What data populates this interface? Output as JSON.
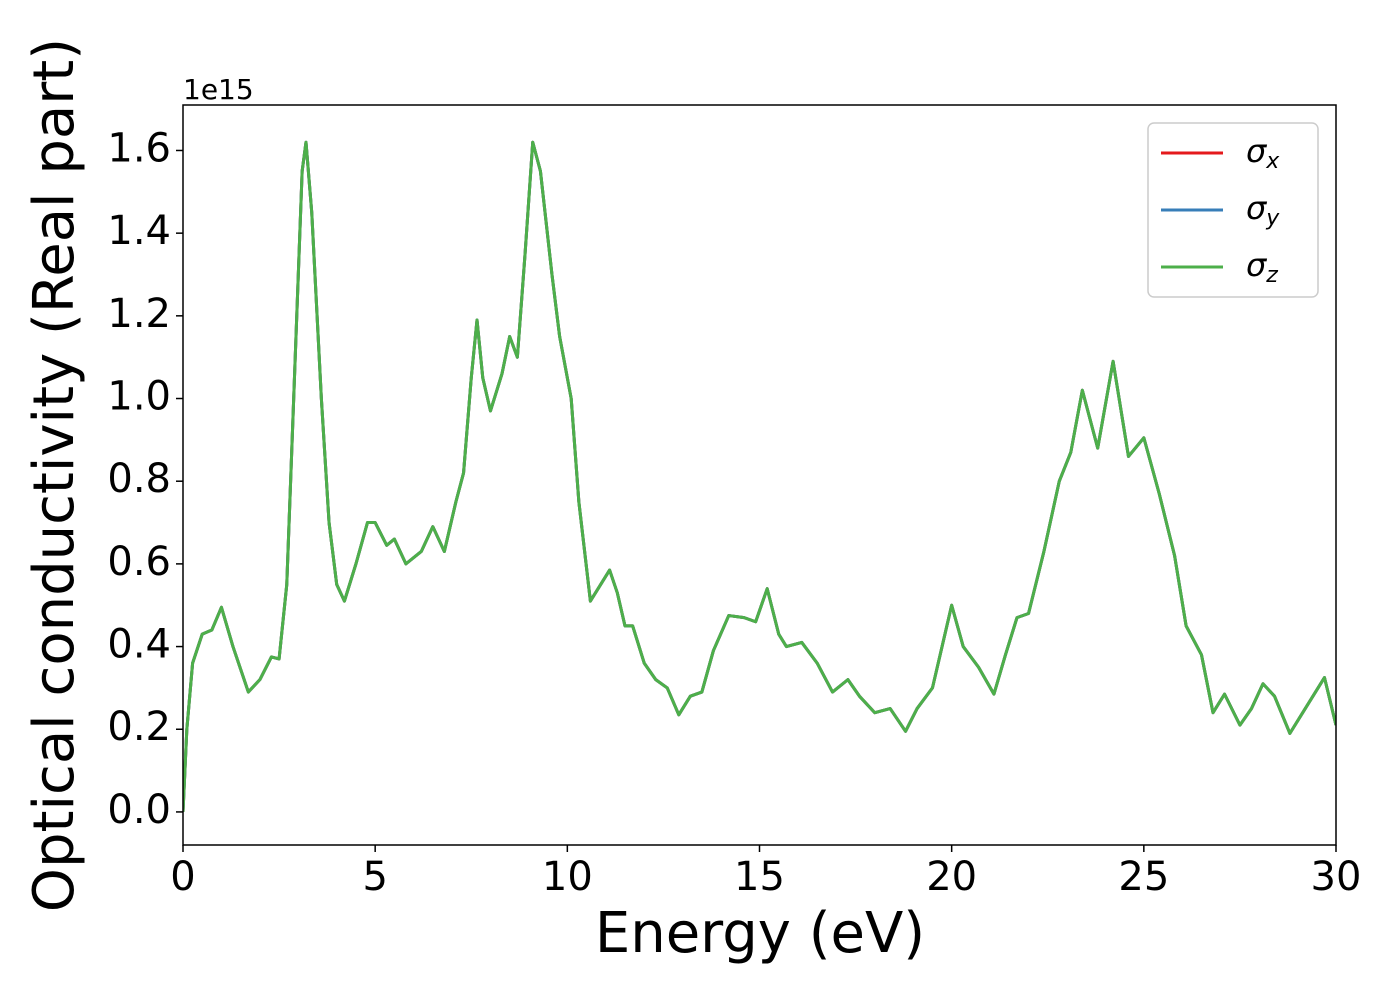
{
  "chart_data": {
    "type": "line",
    "xlabel": "Energy (eV)",
    "ylabel": "Optical conductivity (Real part)",
    "offset_label": "1e15",
    "x": [
      0,
      0.1,
      0.25,
      0.5,
      0.75,
      1.0,
      1.3,
      1.7,
      2.0,
      2.3,
      2.5,
      2.7,
      2.9,
      3.1,
      3.2,
      3.35,
      3.6,
      3.8,
      4.0,
      4.2,
      4.5,
      4.8,
      5.0,
      5.3,
      5.5,
      5.8,
      6.2,
      6.5,
      6.8,
      7.1,
      7.3,
      7.5,
      7.65,
      7.8,
      8.0,
      8.3,
      8.5,
      8.7,
      8.9,
      9.1,
      9.3,
      9.6,
      9.8,
      10.1,
      10.3,
      10.6,
      10.8,
      11.1,
      11.3,
      11.5,
      11.7,
      12.0,
      12.3,
      12.6,
      12.9,
      13.2,
      13.5,
      13.8,
      14.2,
      14.6,
      14.9,
      15.2,
      15.5,
      15.7,
      16.1,
      16.5,
      16.9,
      17.3,
      17.6,
      18.0,
      18.4,
      18.8,
      19.1,
      19.5,
      19.8,
      20.0,
      20.3,
      20.7,
      21.1,
      21.4,
      21.7,
      22.0,
      22.4,
      22.8,
      23.1,
      23.4,
      23.8,
      24.2,
      24.6,
      25.0,
      25.4,
      25.8,
      26.1,
      26.5,
      26.8,
      27.1,
      27.5,
      27.8,
      28.1,
      28.4,
      28.8,
      29.2,
      29.7,
      30.0
    ],
    "series": [
      {
        "name": "σx",
        "color": "#e41a1c",
        "values": [
          0.0,
          0.2,
          0.36,
          0.43,
          0.44,
          0.495,
          0.4,
          0.29,
          0.32,
          0.375,
          0.37,
          0.55,
          1.05,
          1.55,
          1.62,
          1.45,
          1.0,
          0.7,
          0.55,
          0.51,
          0.6,
          0.7,
          0.7,
          0.645,
          0.66,
          0.6,
          0.63,
          0.69,
          0.63,
          0.75,
          0.82,
          1.05,
          1.19,
          1.05,
          0.97,
          1.06,
          1.15,
          1.1,
          1.35,
          1.62,
          1.55,
          1.3,
          1.15,
          1.0,
          0.75,
          0.51,
          0.54,
          0.585,
          0.53,
          0.45,
          0.45,
          0.36,
          0.32,
          0.3,
          0.235,
          0.28,
          0.29,
          0.39,
          0.475,
          0.47,
          0.46,
          0.54,
          0.43,
          0.4,
          0.41,
          0.36,
          0.29,
          0.32,
          0.28,
          0.24,
          0.25,
          0.195,
          0.25,
          0.3,
          0.42,
          0.5,
          0.4,
          0.35,
          0.285,
          0.38,
          0.47,
          0.48,
          0.63,
          0.8,
          0.87,
          1.02,
          0.88,
          1.09,
          0.86,
          0.905,
          0.77,
          0.62,
          0.45,
          0.38,
          0.24,
          0.285,
          0.21,
          0.25,
          0.31,
          0.28,
          0.19,
          0.25,
          0.325,
          0.21
        ]
      },
      {
        "name": "σy",
        "color": "#377eb8",
        "values": [
          0.0,
          0.2,
          0.36,
          0.43,
          0.44,
          0.495,
          0.4,
          0.29,
          0.32,
          0.375,
          0.37,
          0.55,
          1.05,
          1.55,
          1.62,
          1.45,
          1.0,
          0.7,
          0.55,
          0.51,
          0.6,
          0.7,
          0.7,
          0.645,
          0.66,
          0.6,
          0.63,
          0.69,
          0.63,
          0.75,
          0.82,
          1.05,
          1.19,
          1.05,
          0.97,
          1.06,
          1.15,
          1.1,
          1.35,
          1.62,
          1.55,
          1.3,
          1.15,
          1.0,
          0.75,
          0.51,
          0.54,
          0.585,
          0.53,
          0.45,
          0.45,
          0.36,
          0.32,
          0.3,
          0.235,
          0.28,
          0.29,
          0.39,
          0.475,
          0.47,
          0.46,
          0.54,
          0.43,
          0.4,
          0.41,
          0.36,
          0.29,
          0.32,
          0.28,
          0.24,
          0.25,
          0.195,
          0.25,
          0.3,
          0.42,
          0.5,
          0.4,
          0.35,
          0.285,
          0.38,
          0.47,
          0.48,
          0.63,
          0.8,
          0.87,
          1.02,
          0.88,
          1.09,
          0.86,
          0.905,
          0.77,
          0.62,
          0.45,
          0.38,
          0.24,
          0.285,
          0.21,
          0.25,
          0.31,
          0.28,
          0.19,
          0.25,
          0.325,
          0.21
        ]
      },
      {
        "name": "σz",
        "color": "#4daf4a",
        "values": [
          0.0,
          0.2,
          0.36,
          0.43,
          0.44,
          0.495,
          0.4,
          0.29,
          0.32,
          0.375,
          0.37,
          0.55,
          1.05,
          1.55,
          1.62,
          1.45,
          1.0,
          0.7,
          0.55,
          0.51,
          0.6,
          0.7,
          0.7,
          0.645,
          0.66,
          0.6,
          0.63,
          0.69,
          0.63,
          0.75,
          0.82,
          1.05,
          1.19,
          1.05,
          0.97,
          1.06,
          1.15,
          1.1,
          1.35,
          1.62,
          1.55,
          1.3,
          1.15,
          1.0,
          0.75,
          0.51,
          0.54,
          0.585,
          0.53,
          0.45,
          0.45,
          0.36,
          0.32,
          0.3,
          0.235,
          0.28,
          0.29,
          0.39,
          0.475,
          0.47,
          0.46,
          0.54,
          0.43,
          0.4,
          0.41,
          0.36,
          0.29,
          0.32,
          0.28,
          0.24,
          0.25,
          0.195,
          0.25,
          0.3,
          0.42,
          0.5,
          0.4,
          0.35,
          0.285,
          0.38,
          0.47,
          0.48,
          0.63,
          0.8,
          0.87,
          1.02,
          0.88,
          1.09,
          0.86,
          0.905,
          0.77,
          0.62,
          0.45,
          0.38,
          0.24,
          0.285,
          0.21,
          0.25,
          0.31,
          0.28,
          0.19,
          0.25,
          0.325,
          0.21
        ]
      }
    ],
    "xlim": [
      0,
      30
    ],
    "xticks": [
      0,
      5,
      10,
      15,
      20,
      25,
      30
    ],
    "ylim": [
      -0.08,
      1.71
    ],
    "yticks": [
      {
        "value": 0,
        "label": "0.0"
      },
      0.2,
      0.4,
      0.6,
      0.8,
      {
        "value": 1,
        "label": "1.0"
      },
      1.2,
      1.4,
      1.6
    ],
    "grid": false,
    "legend": "upper right"
  }
}
